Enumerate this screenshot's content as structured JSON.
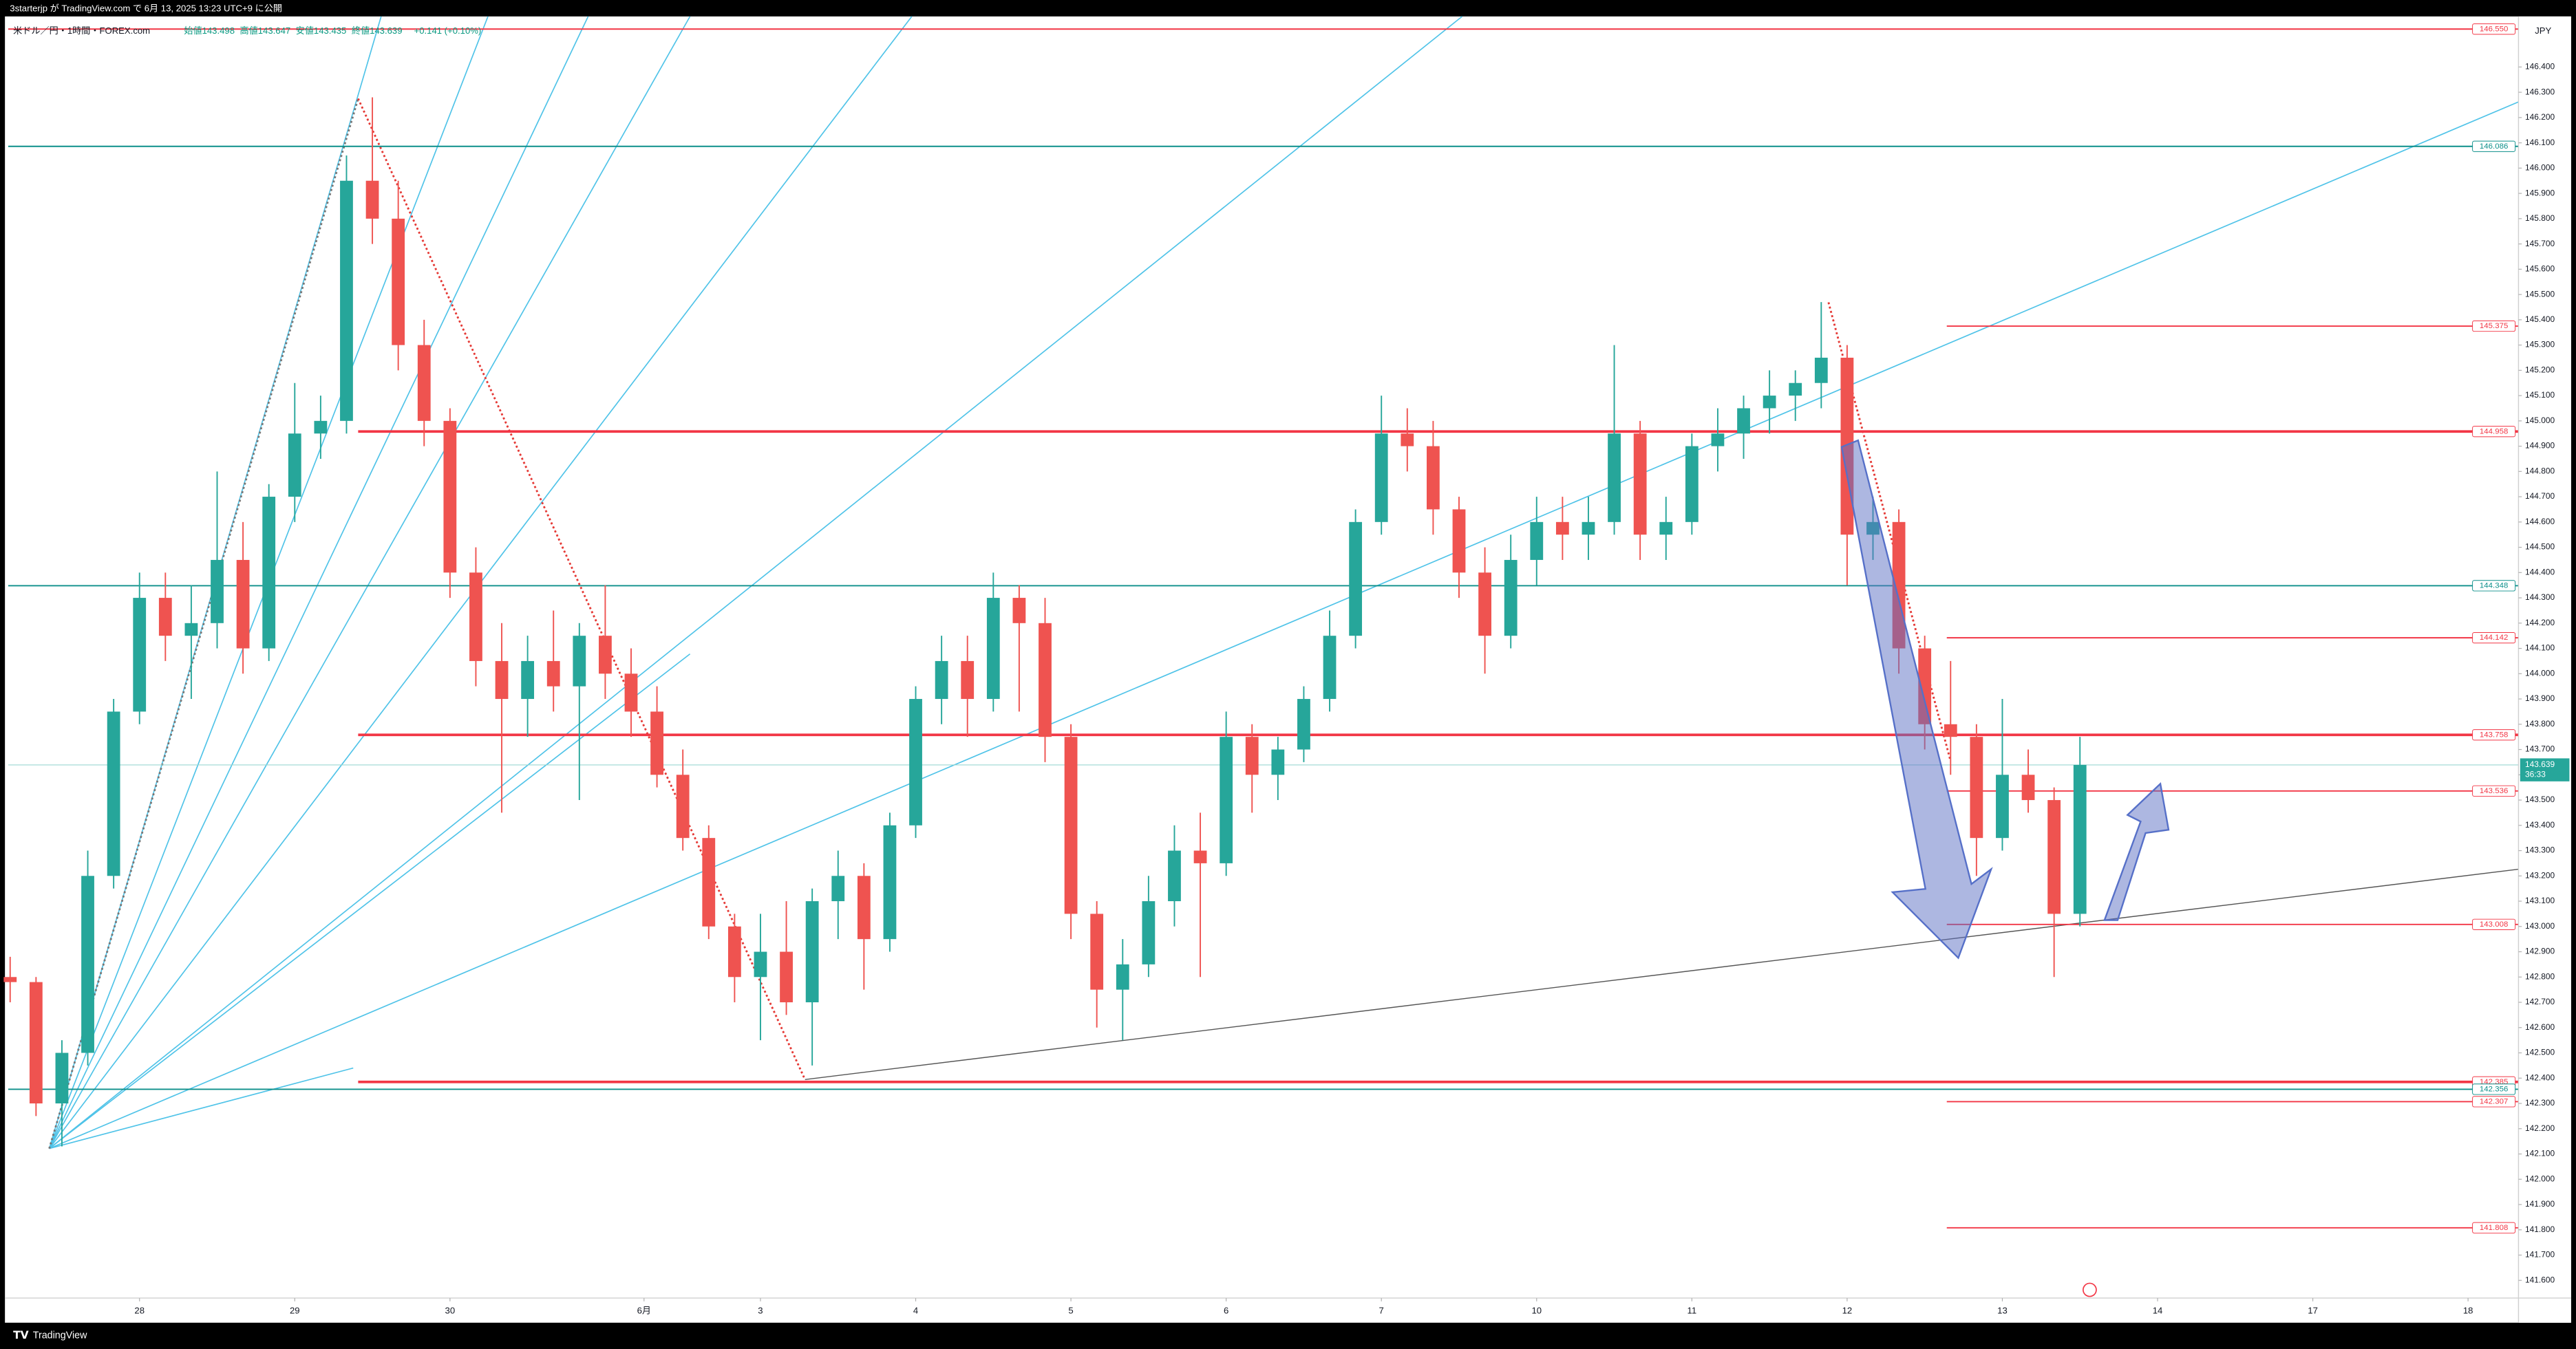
{
  "header": {
    "published": "3starterjp が TradingView.com で 6月 13, 2025 13:23 UTC+9 に公開",
    "footer": "TradingView"
  },
  "chart_data": {
    "type": "candlestick",
    "title": "米ドル／円・1時間・FOREX.com",
    "ohlc": [
      "始値143.498",
      "高値143.647",
      "安値143.435",
      "終値143.639",
      "+0.141 (+0.10%)"
    ],
    "currency": "JPY",
    "countdown": "36:33",
    "up_color": "#26a69a",
    "down_color": "#ef5350",
    "x": [
      -20,
      -16,
      -12,
      -8,
      -4,
      0,
      4,
      8,
      12,
      16,
      20,
      24,
      28,
      32,
      36,
      40,
      44,
      48,
      52,
      56,
      60,
      64,
      68,
      72,
      76,
      80,
      84,
      88,
      92,
      96,
      100,
      104,
      108,
      112,
      116,
      120,
      124,
      128,
      132,
      136,
      140,
      144,
      148,
      152,
      156,
      160,
      164,
      168,
      172,
      176,
      180,
      184,
      188,
      192,
      196,
      200,
      204,
      208,
      212,
      216,
      220,
      224,
      228,
      232,
      236,
      240,
      244,
      248,
      252,
      256,
      260,
      264,
      268,
      272,
      276,
      280,
      284,
      288,
      292,
      296,
      300
    ],
    "open": [
      142.8,
      142.78,
      142.3,
      142.5,
      143.2,
      143.85,
      144.3,
      144.15,
      144.2,
      144.45,
      144.1,
      144.7,
      144.95,
      145.0,
      145.95,
      145.8,
      145.3,
      145.0,
      144.4,
      144.05,
      143.9,
      144.05,
      143.95,
      144.15,
      144.0,
      143.85,
      143.6,
      143.35,
      143.0,
      142.8,
      142.9,
      142.7,
      143.1,
      143.2,
      142.95,
      143.4,
      143.9,
      144.05,
      143.9,
      144.3,
      144.2,
      143.75,
      143.05,
      142.75,
      142.85,
      143.1,
      143.3,
      143.25,
      143.75,
      143.6,
      143.7,
      143.9,
      144.15,
      144.6,
      144.95,
      144.9,
      144.65,
      144.4,
      144.15,
      144.45,
      144.6,
      144.55,
      144.6,
      144.95,
      144.55,
      144.6,
      144.9,
      144.95,
      145.05,
      145.1,
      145.15,
      145.25,
      144.55,
      144.6,
      144.1,
      143.8,
      143.75,
      143.35,
      143.6,
      143.5,
      143.05
    ],
    "high": [
      142.88,
      142.8,
      142.55,
      143.3,
      143.9,
      144.4,
      144.4,
      144.35,
      144.8,
      144.6,
      144.75,
      145.15,
      145.1,
      146.05,
      146.28,
      145.95,
      145.4,
      145.05,
      144.5,
      144.2,
      144.15,
      144.25,
      144.2,
      144.35,
      144.1,
      143.95,
      143.7,
      143.4,
      143.05,
      143.05,
      143.1,
      143.15,
      143.3,
      143.25,
      143.45,
      143.95,
      144.15,
      144.15,
      144.4,
      144.35,
      144.3,
      143.8,
      143.1,
      142.95,
      143.2,
      143.4,
      143.45,
      143.85,
      143.8,
      143.75,
      143.95,
      144.25,
      144.65,
      145.1,
      145.05,
      145.0,
      144.7,
      144.5,
      144.55,
      144.7,
      144.7,
      144.7,
      145.3,
      145.0,
      144.7,
      144.95,
      145.05,
      145.1,
      145.2,
      145.2,
      145.47,
      145.3,
      144.7,
      144.65,
      144.15,
      144.05,
      143.8,
      143.9,
      143.7,
      143.55,
      143.75
    ],
    "low": [
      142.7,
      142.25,
      142.13,
      142.45,
      143.15,
      143.8,
      144.05,
      143.9,
      144.1,
      144.0,
      144.05,
      144.6,
      144.85,
      144.95,
      145.7,
      145.2,
      144.9,
      144.3,
      143.95,
      143.45,
      143.75,
      143.85,
      143.5,
      143.9,
      143.75,
      143.55,
      143.3,
      142.95,
      142.7,
      142.55,
      142.65,
      142.45,
      142.95,
      142.75,
      142.9,
      143.35,
      143.8,
      143.75,
      143.85,
      143.85,
      143.65,
      142.95,
      142.6,
      142.55,
      142.8,
      143.0,
      142.8,
      143.2,
      143.45,
      143.5,
      143.65,
      143.85,
      144.1,
      144.55,
      144.8,
      144.55,
      144.3,
      144.0,
      144.1,
      144.35,
      144.45,
      144.45,
      144.55,
      144.45,
      144.45,
      144.55,
      144.8,
      144.85,
      144.95,
      145.0,
      145.05,
      144.35,
      144.45,
      144.0,
      143.7,
      143.6,
      143.2,
      143.3,
      143.45,
      142.8,
      143.0
    ],
    "close": [
      142.78,
      142.3,
      142.5,
      143.2,
      143.85,
      144.3,
      144.15,
      144.2,
      144.45,
      144.1,
      144.7,
      144.95,
      145.0,
      145.95,
      145.8,
      145.3,
      145.0,
      144.4,
      144.05,
      143.9,
      144.05,
      143.95,
      144.15,
      144.0,
      143.85,
      143.6,
      143.35,
      143.0,
      142.8,
      142.9,
      142.7,
      143.1,
      143.2,
      142.95,
      143.4,
      143.9,
      144.05,
      143.9,
      144.3,
      144.2,
      143.75,
      143.05,
      142.75,
      142.85,
      143.1,
      143.3,
      143.25,
      143.75,
      143.6,
      143.7,
      143.9,
      144.15,
      144.6,
      144.95,
      144.9,
      144.65,
      144.4,
      144.15,
      144.45,
      144.6,
      144.55,
      144.6,
      144.95,
      144.55,
      144.6,
      144.9,
      144.95,
      145.05,
      145.1,
      145.15,
      145.25,
      144.55,
      144.6,
      144.1,
      143.8,
      143.75,
      143.35,
      143.6,
      143.5,
      143.05,
      143.639
    ],
    "xlim": [
      -20.3,
      367.8
    ],
    "ylim": [
      141.53,
      146.6
    ],
    "xticks": [
      {
        "value": 0,
        "label": "28"
      },
      {
        "value": 24,
        "label": "29"
      },
      {
        "value": 48,
        "label": "30"
      },
      {
        "value": 78,
        "label": "6月"
      },
      {
        "value": 96,
        "label": "3"
      },
      {
        "value": 120,
        "label": "4"
      },
      {
        "value": 144,
        "label": "5"
      },
      {
        "value": 168,
        "label": "6"
      },
      {
        "value": 192,
        "label": "7"
      },
      {
        "value": 216,
        "label": "10"
      },
      {
        "value": 240,
        "label": "11"
      },
      {
        "value": 264,
        "label": "12"
      },
      {
        "value": 288,
        "label": "13"
      },
      {
        "value": 312,
        "label": "14"
      },
      {
        "value": 336,
        "label": "17"
      },
      {
        "value": 360,
        "label": "18"
      }
    ],
    "yticks": [
      {
        "value": 146.4,
        "label": "146.400"
      },
      {
        "value": 146.3,
        "label": "146.300"
      },
      {
        "value": 146.2,
        "label": "146.200"
      },
      {
        "value": 146.1,
        "label": "146.100"
      },
      {
        "value": 146.0,
        "label": "146.000"
      },
      {
        "value": 145.9,
        "label": "145.900"
      },
      {
        "value": 145.8,
        "label": "145.800"
      },
      {
        "value": 145.7,
        "label": "145.700"
      },
      {
        "value": 145.6,
        "label": "145.600"
      },
      {
        "value": 145.5,
        "label": "145.500"
      },
      {
        "value": 145.4,
        "label": "145.400"
      },
      {
        "value": 145.3,
        "label": "145.300"
      },
      {
        "value": 145.2,
        "label": "145.200"
      },
      {
        "value": 145.1,
        "label": "145.100"
      },
      {
        "value": 145.0,
        "label": "145.000"
      },
      {
        "value": 144.9,
        "label": "144.900"
      },
      {
        "value": 144.8,
        "label": "144.800"
      },
      {
        "value": 144.7,
        "label": "144.700"
      },
      {
        "value": 144.6,
        "label": "144.600"
      },
      {
        "value": 144.5,
        "label": "144.500"
      },
      {
        "value": 144.4,
        "label": "144.400"
      },
      {
        "value": 144.3,
        "label": "144.300"
      },
      {
        "value": 144.2,
        "label": "144.200"
      },
      {
        "value": 144.1,
        "label": "144.100"
      },
      {
        "value": 144.0,
        "label": "144.000"
      },
      {
        "value": 143.9,
        "label": "143.900"
      },
      {
        "value": 143.8,
        "label": "143.800"
      },
      {
        "value": 143.7,
        "label": "143.700"
      },
      {
        "value": 143.6,
        "label": "143.600"
      },
      {
        "value": 143.5,
        "label": "143.500"
      },
      {
        "value": 143.4,
        "label": "143.400"
      },
      {
        "value": 143.3,
        "label": "143.300"
      },
      {
        "value": 143.2,
        "label": "143.200"
      },
      {
        "value": 143.1,
        "label": "143.100"
      },
      {
        "value": 143.0,
        "label": "143.000"
      },
      {
        "value": 142.9,
        "label": "142.900"
      },
      {
        "value": 142.8,
        "label": "142.800"
      },
      {
        "value": 142.7,
        "label": "142.700"
      },
      {
        "value": 142.6,
        "label": "142.600"
      },
      {
        "value": 142.5,
        "label": "142.500"
      },
      {
        "value": 142.4,
        "label": "142.400"
      },
      {
        "value": 142.3,
        "label": "142.300"
      },
      {
        "value": 142.2,
        "label": "142.200"
      },
      {
        "value": 142.1,
        "label": "142.100"
      },
      {
        "value": 142.0,
        "label": "142.000"
      },
      {
        "value": 141.9,
        "label": "141.900"
      },
      {
        "value": 141.8,
        "label": "141.800"
      },
      {
        "value": 141.7,
        "label": "141.700"
      },
      {
        "value": 141.6,
        "label": "141.600"
      }
    ],
    "price_lines": [
      {
        "value": 146.55,
        "label": "146.550",
        "color": "#f23645"
      },
      {
        "value": 146.086,
        "label": "146.086",
        "color": "#0c8f8a"
      },
      {
        "value": 145.375,
        "label": "145.375",
        "color": "#f23645"
      },
      {
        "value": 144.958,
        "label": "144.958",
        "color": "#f23645"
      },
      {
        "value": 144.348,
        "label": "144.348",
        "color": "#0c8f8a"
      },
      {
        "value": 144.142,
        "label": "144.142",
        "color": "#f23645"
      },
      {
        "value": 143.758,
        "label": "143.758",
        "color": "#f23645"
      },
      {
        "value": 143.536,
        "label": "143.536",
        "color": "#f23645"
      },
      {
        "value": 143.008,
        "label": "143.008",
        "color": "#f23645"
      },
      {
        "value": 142.385,
        "label": "142.385",
        "color": "#f23645"
      },
      {
        "value": 142.356,
        "label": "142.356",
        "color": "#0c8f8a"
      },
      {
        "value": 142.307,
        "label": "142.307",
        "color": "#f23645"
      },
      {
        "value": 141.808,
        "label": "141.808",
        "color": "#f23645"
      }
    ],
    "last_price": {
      "value": 143.639,
      "label": "143.639"
    }
  }
}
